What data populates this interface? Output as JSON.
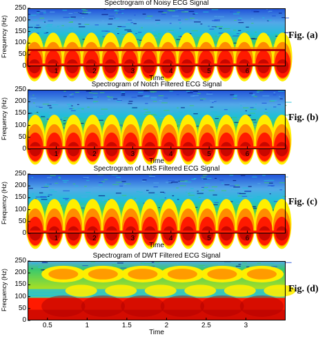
{
  "chart_data": [
    {
      "type": "heatmap",
      "title": "Spectrogram of Noisy ECG Signal",
      "xlabel": "Time",
      "ylabel": "Frequency (Hz)",
      "xlim": [
        0.25,
        7.0
      ],
      "ylim": [
        0,
        250
      ],
      "xticks": [
        1,
        2,
        3,
        4,
        5,
        6
      ],
      "yticks": [
        0,
        50,
        100,
        150,
        200,
        250
      ],
      "figure_label": "Fig. (a)",
      "beats_x": [
        0.43,
        0.92,
        1.42,
        1.92,
        2.42,
        2.92,
        3.42,
        3.92,
        4.42,
        4.92,
        5.42,
        5.92,
        6.42,
        6.92
      ],
      "noise_line_hz": 70,
      "pattern": "noisy"
    },
    {
      "type": "heatmap",
      "title": "Spectrogram of Notch Filtered ECG Signal",
      "xlabel": "Time",
      "ylabel": "Frequency (Hz)",
      "xlim": [
        0.25,
        7.0
      ],
      "ylim": [
        0,
        250
      ],
      "xticks": [
        1,
        2,
        3,
        4,
        5,
        6
      ],
      "yticks": [
        0,
        50,
        100,
        150,
        200,
        250
      ],
      "figure_label": "Fig. (b)",
      "beats_x": [
        0.45,
        0.95,
        1.45,
        1.95,
        2.45,
        2.95,
        3.45,
        3.95,
        4.45,
        4.95,
        5.45,
        5.95,
        6.45,
        6.9
      ],
      "pattern": "filtered"
    },
    {
      "type": "heatmap",
      "title": "Spectrogram of LMS Filtered ECG Signal",
      "xlabel": "Time",
      "ylabel": "Frequency (Hz)",
      "xlim": [
        0.25,
        7.0
      ],
      "ylim": [
        0,
        250
      ],
      "xticks": [
        1,
        2,
        3,
        4,
        5,
        6
      ],
      "yticks": [
        0,
        50,
        100,
        150,
        200,
        250
      ],
      "figure_label": "Fig. (c)",
      "beats_x": [
        0.45,
        0.95,
        1.45,
        1.95,
        2.45,
        2.95,
        3.45,
        3.95,
        4.45,
        4.95,
        5.45,
        5.95,
        6.45,
        6.9
      ],
      "pattern": "filtered"
    },
    {
      "type": "heatmap",
      "title": "Spectrogram of DWT Filtered ECG Signal",
      "xlabel": "Time",
      "ylabel": "Frequency (Hz)",
      "xlim": [
        0.25,
        3.5
      ],
      "ylim": [
        0,
        250
      ],
      "xticks": [
        0.5,
        1,
        1.5,
        2,
        2.5,
        3
      ],
      "yticks": [
        0,
        50,
        100,
        150,
        200,
        250
      ],
      "figure_label": "Fig. (d)",
      "beats_x": [
        0.7,
        1.2,
        1.7,
        2.2,
        2.7,
        3.2
      ],
      "pattern": "dwt"
    }
  ],
  "colors": {
    "deep_red": "#b00000",
    "red": "#ff1a00",
    "orange": "#ff8c00",
    "yellow": "#ffee00",
    "yellow_green": "#b5e21a",
    "green": "#39c96e",
    "cyan": "#1fbfd8",
    "light_blue": "#53a8e8",
    "blue": "#1f4fd8",
    "dark_blue": "#00117a"
  }
}
